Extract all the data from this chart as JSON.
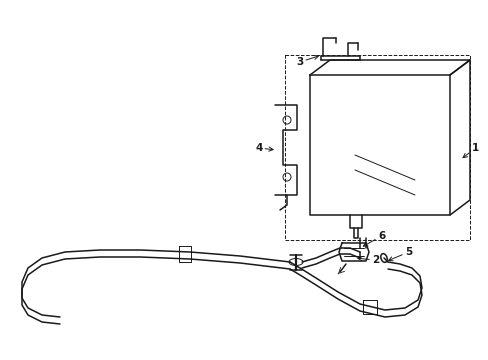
{
  "background_color": "#ffffff",
  "line_color": "#1a1a1a",
  "lw": 1.1,
  "tlw": 0.7,
  "fs": 7.5,
  "figsize": [
    4.89,
    3.6
  ],
  "dpi": 100
}
